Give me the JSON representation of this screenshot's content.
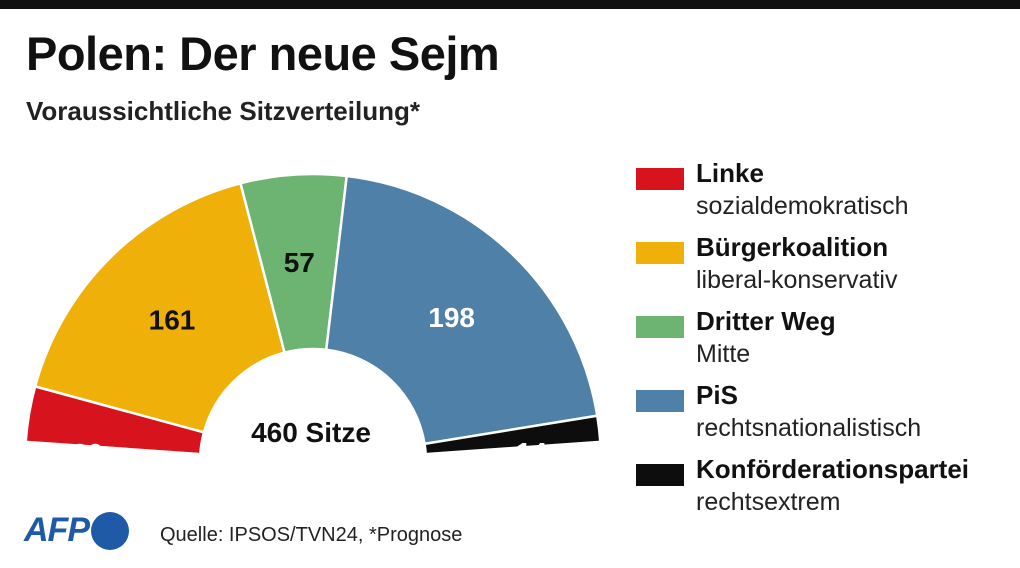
{
  "title": "Polen: Der neue Sejm",
  "subtitle": "Voraussichtliche Sitzverteilung*",
  "source": "Quelle: IPSOS/TVN24, *Prognose",
  "logo": "AFP",
  "chart_data": {
    "type": "pie",
    "variant": "parliament-semicircle",
    "center_label": "460 Sitze",
    "total": 460,
    "series": [
      {
        "name": "Linke",
        "description": "sozialdemokratisch",
        "value": 30,
        "color": "#d7141d",
        "label_color": "#ffffff"
      },
      {
        "name": "Bürgerkoalition",
        "description": "liberal-konservativ",
        "value": 161,
        "color": "#f0b00a",
        "label_color": "#111111"
      },
      {
        "name": "Dritter Weg",
        "description": "Mitte",
        "value": 57,
        "color": "#6db472",
        "label_color": "#111111"
      },
      {
        "name": "PiS",
        "description": "rechtsnationalistisch",
        "value": 198,
        "color": "#4f80a8",
        "label_color": "#ffffff"
      },
      {
        "name": "Konförderationspartei",
        "description": "rechtsextrem",
        "value": 14,
        "color": "#0d0d0d",
        "label_color": "#ffffff"
      }
    ]
  }
}
